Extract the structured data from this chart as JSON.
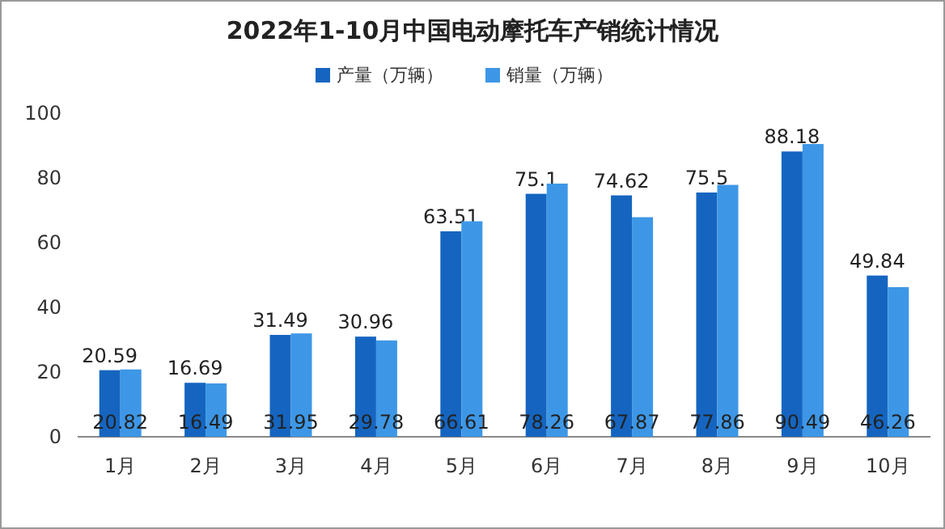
{
  "chart_data": {
    "type": "bar",
    "title": "2022年1-10月中国电动摩托车产销统计情况",
    "categories": [
      "1月",
      "2月",
      "3月",
      "4月",
      "5月",
      "6月",
      "7月",
      "8月",
      "9月",
      "10月"
    ],
    "series": [
      {
        "name": "产量（万辆）",
        "color": "#1565c0",
        "values": [
          20.59,
          16.69,
          31.49,
          30.96,
          63.51,
          75.1,
          74.62,
          75.5,
          88.18,
          49.84
        ]
      },
      {
        "name": "销量（万辆）",
        "color": "#3d97e6",
        "values": [
          20.82,
          16.49,
          31.95,
          29.78,
          66.61,
          78.26,
          67.87,
          77.86,
          90.49,
          46.26
        ]
      }
    ],
    "ylim": [
      0,
      100
    ],
    "yticks": [
      0,
      20,
      40,
      60,
      80,
      100
    ],
    "data_labels": true,
    "legend": "top"
  }
}
